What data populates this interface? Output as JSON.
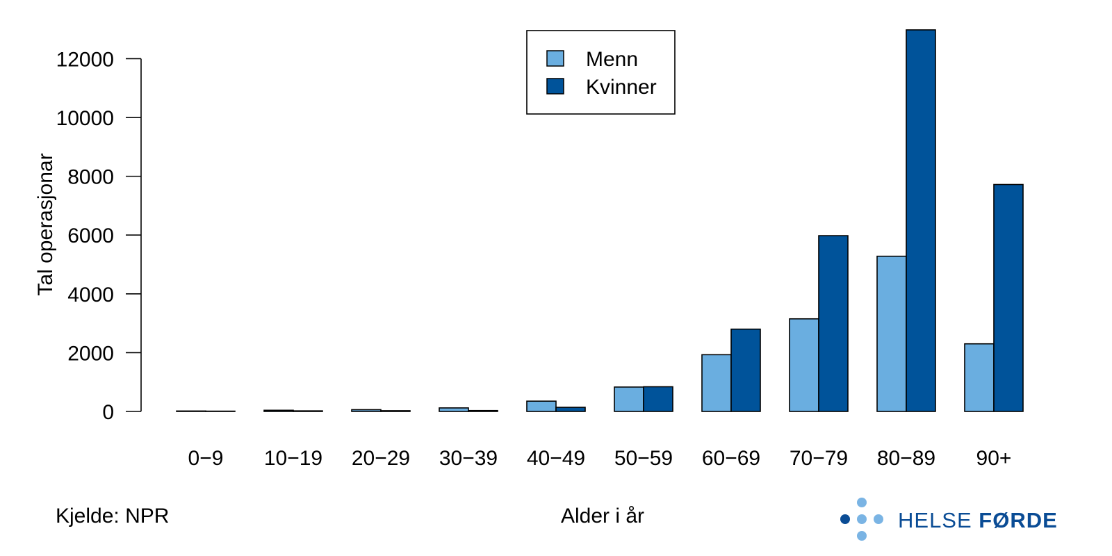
{
  "chart_data": {
    "type": "bar",
    "categories": [
      "0−9",
      "10−19",
      "20−29",
      "30−39",
      "40−49",
      "50−59",
      "60−69",
      "70−79",
      "80−89",
      "90+"
    ],
    "series": [
      {
        "name": "Menn",
        "color": "#6aaee0",
        "values": [
          15,
          40,
          60,
          120,
          350,
          830,
          1930,
          3150,
          5280,
          2300
        ]
      },
      {
        "name": "Kvinner",
        "color": "#00539a",
        "values": [
          10,
          20,
          25,
          30,
          140,
          840,
          2800,
          5980,
          12980,
          7720
        ]
      }
    ],
    "yticks": [
      0,
      2000,
      4000,
      6000,
      8000,
      10000,
      12000
    ],
    "ylim": [
      0,
      12980
    ],
    "ylabel": "Tal operasjonar",
    "xlabel": "Alder i år",
    "legend_position": "top-center",
    "grid": false
  },
  "source": "Kjelde: NPR",
  "logo": {
    "text_light": "HELSE ",
    "text_bold": "FØRDE",
    "dot_light": "#7ab4e4",
    "dot_dark": "#0a4c95"
  }
}
